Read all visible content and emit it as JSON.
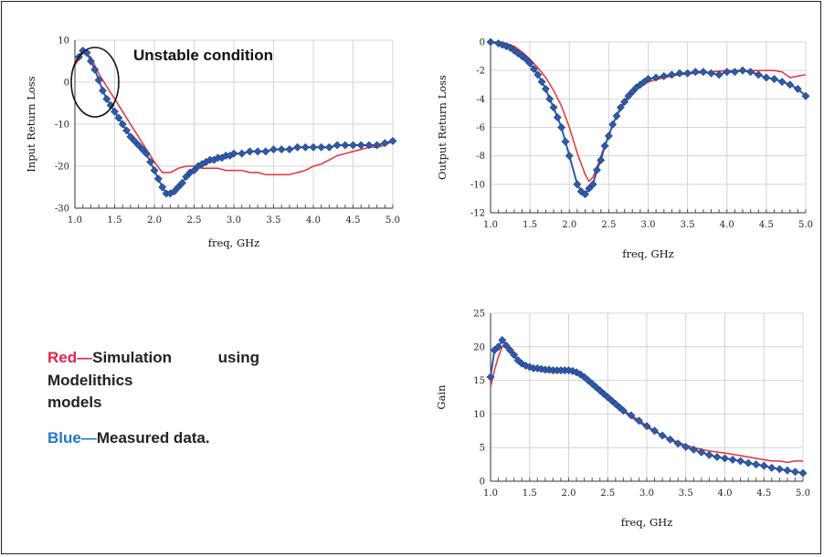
{
  "legend": {
    "red_label": "Red—",
    "red_text_line1": "Simulation using Modelithics",
    "red_text_line2": "models",
    "blue_label": "Blue—",
    "blue_text": "Measured data.",
    "red_color": "#e8303a",
    "blue_color": "#2e5aa8"
  },
  "chart_data": [
    {
      "id": "input_return_loss",
      "type": "line",
      "xlabel": "freq, GHz",
      "ylabel": "Input Return Loss",
      "xlim": [
        1.0,
        5.0
      ],
      "ylim": [
        -30,
        10
      ],
      "xticks": [
        "1.0",
        "1.5",
        "2.0",
        "2.5",
        "3.0",
        "3.5",
        "4.0",
        "4.5",
        "5.0"
      ],
      "yticks": [
        "10",
        "0",
        "-10",
        "-20",
        "-30"
      ],
      "grid": true,
      "annotation": "Unstable condition",
      "series": [
        {
          "color": "#e8303a",
          "marker": "none",
          "x": [
            1.0,
            1.1,
            1.2,
            1.3,
            1.4,
            1.5,
            1.6,
            1.7,
            1.8,
            1.9,
            2.0,
            2.1,
            2.2,
            2.3,
            2.4,
            2.5,
            2.6,
            2.7,
            2.8,
            2.9,
            3.0,
            3.1,
            3.2,
            3.3,
            3.4,
            3.5,
            3.6,
            3.7,
            3.8,
            3.9,
            4.0,
            4.1,
            4.2,
            4.3,
            4.4,
            4.5,
            4.6,
            4.7,
            4.8,
            4.9,
            5.0
          ],
          "y": [
            4,
            7,
            6,
            2,
            -1,
            -4,
            -7,
            -10,
            -13,
            -16,
            -19,
            -21.5,
            -21.5,
            -20.5,
            -20,
            -20,
            -20.5,
            -20.5,
            -20.5,
            -21,
            -21,
            -21,
            -21.5,
            -21.5,
            -22,
            -22,
            -22,
            -22,
            -21.5,
            -21,
            -20,
            -19.5,
            -18.5,
            -17.5,
            -17,
            -16.5,
            -16,
            -15.5,
            -15.5,
            -15,
            -14
          ]
        },
        {
          "color": "#2e5aa8",
          "marker": "diamond",
          "x": [
            1.05,
            1.1,
            1.15,
            1.2,
            1.25,
            1.3,
            1.35,
            1.4,
            1.45,
            1.5,
            1.55,
            1.6,
            1.65,
            1.7,
            1.75,
            1.8,
            1.85,
            1.9,
            1.95,
            2.0,
            2.05,
            2.1,
            2.15,
            2.2,
            2.25,
            2.3,
            2.35,
            2.4,
            2.45,
            2.5,
            2.55,
            2.6,
            2.65,
            2.7,
            2.75,
            2.8,
            2.85,
            2.9,
            2.95,
            3.0,
            3.1,
            3.2,
            3.3,
            3.4,
            3.5,
            3.6,
            3.7,
            3.8,
            3.9,
            4.0,
            4.1,
            4.2,
            4.3,
            4.4,
            4.5,
            4.6,
            4.7,
            4.8,
            4.9,
            5.0
          ],
          "y": [
            6,
            7.5,
            7,
            5,
            3,
            0.5,
            -2,
            -4,
            -5.5,
            -7,
            -8.5,
            -10,
            -11.5,
            -13,
            -14,
            -15,
            -16,
            -17,
            -19,
            -21,
            -23,
            -25,
            -26.5,
            -26.5,
            -26,
            -25,
            -24,
            -22.5,
            -21.5,
            -21,
            -20,
            -19.5,
            -19,
            -18.5,
            -18.5,
            -18,
            -18,
            -17.5,
            -17.5,
            -17,
            -17,
            -16.5,
            -16.5,
            -16.5,
            -16,
            -16,
            -16,
            -15.5,
            -15.5,
            -15.5,
            -15.5,
            -15.5,
            -15,
            -15,
            -15,
            -15,
            -15,
            -15,
            -14.5,
            -14
          ]
        }
      ]
    },
    {
      "id": "output_return_loss",
      "type": "line",
      "xlabel": "freq, GHz",
      "ylabel": "Output Return Loss",
      "xlim": [
        1.0,
        5.0
      ],
      "ylim": [
        -12,
        0
      ],
      "xticks": [
        "1.0",
        "1.5",
        "2.0",
        "2.5",
        "3.0",
        "3.5",
        "4.0",
        "4.5",
        "5.0"
      ],
      "yticks": [
        "0",
        "-2",
        "-4",
        "-6",
        "-8",
        "-10",
        "-12"
      ],
      "grid": true,
      "series": [
        {
          "color": "#e8303a",
          "marker": "none",
          "x": [
            1.0,
            1.1,
            1.2,
            1.3,
            1.4,
            1.5,
            1.6,
            1.7,
            1.8,
            1.9,
            2.0,
            2.1,
            2.2,
            2.25,
            2.3,
            2.35,
            2.4,
            2.5,
            2.6,
            2.7,
            2.8,
            2.9,
            3.0,
            3.2,
            3.4,
            3.6,
            3.8,
            4.0,
            4.2,
            4.4,
            4.6,
            4.7,
            4.8,
            4.9,
            5.0
          ],
          "y": [
            0,
            0,
            -0.1,
            -0.3,
            -0.7,
            -1.2,
            -1.8,
            -2.5,
            -3.4,
            -4.5,
            -6,
            -7.8,
            -9.3,
            -9.8,
            -9.5,
            -8.8,
            -8,
            -6.5,
            -5.2,
            -4.3,
            -3.6,
            -3.1,
            -2.8,
            -2.5,
            -2.3,
            -2.2,
            -2.1,
            -2,
            -2,
            -2,
            -2,
            -2.1,
            -2.5,
            -2.4,
            -2.3
          ]
        },
        {
          "color": "#2e5aa8",
          "marker": "diamond",
          "x": [
            1.0,
            1.1,
            1.15,
            1.2,
            1.25,
            1.3,
            1.35,
            1.4,
            1.45,
            1.5,
            1.55,
            1.6,
            1.65,
            1.7,
            1.75,
            1.8,
            1.85,
            1.9,
            1.95,
            2.0,
            2.1,
            2.15,
            2.2,
            2.25,
            2.3,
            2.35,
            2.4,
            2.45,
            2.5,
            2.55,
            2.6,
            2.65,
            2.7,
            2.75,
            2.8,
            2.85,
            2.9,
            2.95,
            3.0,
            3.1,
            3.2,
            3.3,
            3.4,
            3.5,
            3.6,
            3.7,
            3.8,
            3.9,
            4.0,
            4.1,
            4.2,
            4.3,
            4.4,
            4.5,
            4.6,
            4.7,
            4.8,
            4.9,
            5.0
          ],
          "y": [
            0,
            -0.1,
            -0.2,
            -0.3,
            -0.4,
            -0.6,
            -0.8,
            -1,
            -1.2,
            -1.5,
            -1.9,
            -2.3,
            -2.8,
            -3.3,
            -4,
            -4.6,
            -5.3,
            -6,
            -7,
            -8,
            -10,
            -10.5,
            -10.7,
            -10.3,
            -10,
            -9,
            -8.3,
            -7.3,
            -6.6,
            -5.8,
            -5.2,
            -4.6,
            -4.2,
            -3.8,
            -3.5,
            -3.2,
            -3,
            -2.8,
            -2.6,
            -2.5,
            -2.4,
            -2.3,
            -2.2,
            -2.2,
            -2.1,
            -2.1,
            -2.2,
            -2.3,
            -2.1,
            -2.1,
            -2,
            -2.1,
            -2.3,
            -2.5,
            -2.6,
            -2.8,
            -3,
            -3.3,
            -3.8
          ]
        }
      ]
    },
    {
      "id": "gain",
      "type": "line",
      "xlabel": "freq, GHz",
      "ylabel": "Gain",
      "xlim": [
        1.0,
        5.0
      ],
      "ylim": [
        0,
        25
      ],
      "xticks": [
        "1.0",
        "1.5",
        "2.0",
        "2.5",
        "3.0",
        "3.5",
        "4.0",
        "4.5",
        "5.0"
      ],
      "yticks": [
        "25",
        "20",
        "15",
        "10",
        "5",
        "0"
      ],
      "grid": true,
      "series": [
        {
          "color": "#e8303a",
          "marker": "none",
          "x": [
            1.0,
            1.05,
            1.1,
            1.15,
            1.2,
            1.25,
            1.3,
            1.4,
            1.5,
            1.6,
            1.7,
            1.8,
            1.9,
            2.0,
            2.1,
            2.2,
            2.3,
            2.4,
            2.5,
            2.6,
            2.8,
            3.0,
            3.2,
            3.4,
            3.6,
            3.8,
            4.0,
            4.2,
            4.4,
            4.6,
            4.7,
            4.8,
            4.9,
            5.0
          ],
          "y": [
            14,
            16.5,
            18.5,
            20,
            20.2,
            19.8,
            18.8,
            17.5,
            16.8,
            16.5,
            16.3,
            16.2,
            16.2,
            16.3,
            16,
            15.2,
            14.3,
            13.3,
            12.3,
            11.3,
            9.5,
            8,
            6.8,
            5.8,
            5,
            4.5,
            4.2,
            3.8,
            3.4,
            3,
            3,
            2.8,
            3,
            3
          ]
        },
        {
          "color": "#2e5aa8",
          "marker": "diamond",
          "x": [
            1.0,
            1.05,
            1.1,
            1.15,
            1.2,
            1.25,
            1.3,
            1.35,
            1.4,
            1.45,
            1.5,
            1.55,
            1.6,
            1.65,
            1.7,
            1.75,
            1.8,
            1.85,
            1.9,
            1.95,
            2.0,
            2.05,
            2.1,
            2.15,
            2.2,
            2.25,
            2.3,
            2.35,
            2.4,
            2.45,
            2.5,
            2.55,
            2.6,
            2.65,
            2.7,
            2.8,
            2.9,
            3.0,
            3.1,
            3.2,
            3.3,
            3.4,
            3.5,
            3.6,
            3.7,
            3.8,
            3.9,
            4.0,
            4.1,
            4.2,
            4.3,
            4.4,
            4.5,
            4.6,
            4.7,
            4.8,
            4.9,
            5.0
          ],
          "y": [
            15.5,
            19.5,
            20,
            21,
            20.2,
            19.5,
            18.8,
            18,
            17.5,
            17.2,
            17,
            16.8,
            16.8,
            16.7,
            16.6,
            16.6,
            16.5,
            16.5,
            16.5,
            16.5,
            16.5,
            16.4,
            16.2,
            15.9,
            15.5,
            15,
            14.5,
            14,
            13.5,
            13,
            12.5,
            12,
            11.5,
            11,
            10.5,
            9.8,
            9,
            8.2,
            7.5,
            6.8,
            6.2,
            5.6,
            5.1,
            4.7,
            4.3,
            3.9,
            3.6,
            3.4,
            3.2,
            3,
            2.7,
            2.5,
            2.3,
            2,
            1.8,
            1.6,
            1.4,
            1.2
          ]
        }
      ]
    }
  ]
}
